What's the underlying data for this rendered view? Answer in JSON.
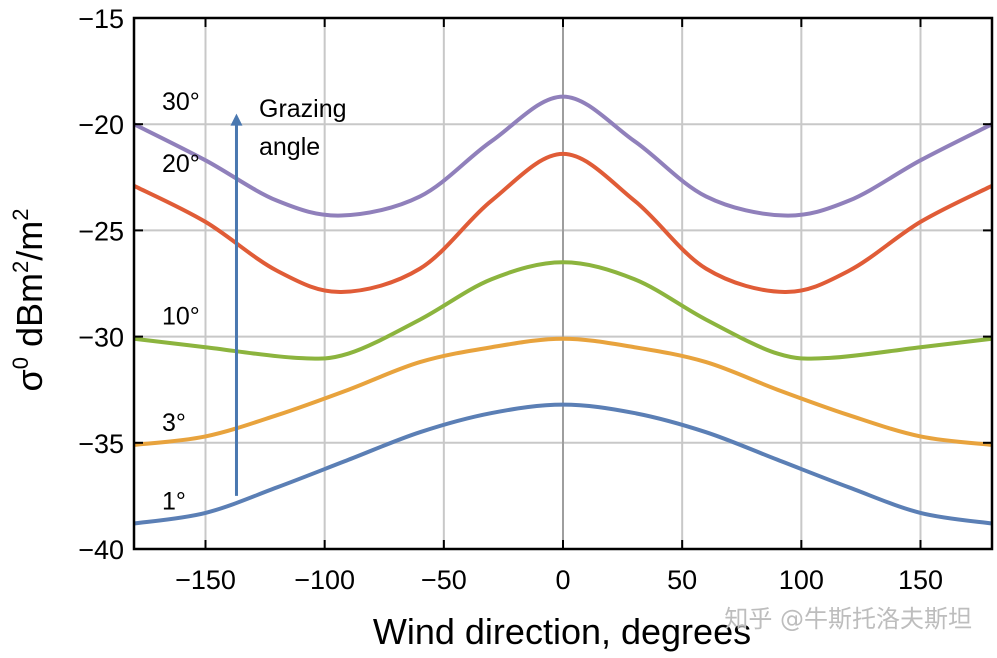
{
  "chart_data": {
    "type": "line",
    "title": "",
    "xlabel": "Wind direction, degrees",
    "ylabel_main": "σ",
    "ylabel_sup": "0",
    "ylabel_rest": " dBm",
    "ylabel_sup2": "2",
    "ylabel_rest2": "/m",
    "ylabel_sup3": "2",
    "xlim": [
      -180,
      180
    ],
    "ylim": [
      -40,
      -15
    ],
    "xticks": [
      -150,
      -100,
      -50,
      0,
      50,
      100,
      150
    ],
    "xtick_labels": [
      "−150",
      "−100",
      "−50",
      "0",
      "50",
      "100",
      "150"
    ],
    "yticks": [
      -15,
      -20,
      -25,
      -30,
      -35,
      -40
    ],
    "ytick_labels": [
      "−15",
      "−20",
      "−25",
      "−30",
      "−35",
      "−40"
    ],
    "grid": true,
    "series": [
      {
        "name": "1°",
        "color": "#5b7fb5",
        "x": [
          -180,
          -150,
          -120,
          -90,
          -60,
          -30,
          0,
          30,
          60,
          90,
          120,
          150,
          180
        ],
        "y": [
          -38.8,
          -38.3,
          -37.1,
          -35.8,
          -34.5,
          -33.6,
          -33.2,
          -33.6,
          -34.5,
          -35.8,
          -37.1,
          -38.3,
          -38.8
        ]
      },
      {
        "name": "3°",
        "color": "#e8a33d",
        "x": [
          -180,
          -150,
          -120,
          -90,
          -60,
          -30,
          0,
          30,
          60,
          90,
          120,
          150,
          180
        ],
        "y": [
          -35.1,
          -34.7,
          -33.7,
          -32.5,
          -31.2,
          -30.5,
          -30.1,
          -30.5,
          -31.2,
          -32.5,
          -33.7,
          -34.7,
          -35.1
        ]
      },
      {
        "name": "10°",
        "color": "#8cb43e",
        "x": [
          -180,
          -150,
          -112,
          -90,
          -60,
          -30,
          0,
          30,
          60,
          90,
          112,
          150,
          180
        ],
        "y": [
          -30.1,
          -30.5,
          -31.0,
          -30.8,
          -29.2,
          -27.3,
          -26.5,
          -27.3,
          -29.2,
          -30.8,
          -31.0,
          -30.5,
          -30.1
        ]
      },
      {
        "name": "20°",
        "color": "#e05c37",
        "x": [
          -180,
          -150,
          -120,
          -93,
          -60,
          -30,
          0,
          30,
          60,
          93,
          120,
          150,
          180
        ],
        "y": [
          -22.9,
          -24.6,
          -26.9,
          -27.9,
          -26.8,
          -23.6,
          -21.4,
          -23.6,
          -26.8,
          -27.9,
          -26.9,
          -24.6,
          -22.9
        ]
      },
      {
        "name": "30°",
        "color": "#9080bb",
        "x": [
          -180,
          -150,
          -120,
          -93,
          -60,
          -30,
          0,
          30,
          60,
          93,
          120,
          150,
          180
        ],
        "y": [
          -20.0,
          -21.7,
          -23.6,
          -24.3,
          -23.4,
          -20.8,
          -18.7,
          -20.8,
          -23.4,
          -24.3,
          -23.6,
          -21.7,
          -20.0
        ]
      }
    ],
    "annotations": {
      "arrow_label_line1": "Grazing",
      "arrow_label_line2": "angle",
      "arrow_x": -137,
      "arrow_y_start": -37.5,
      "arrow_y_end": -19.5,
      "arrow_color": "#4a78b0"
    }
  },
  "watermark": "知乎 @牛斯托洛夫斯坦"
}
